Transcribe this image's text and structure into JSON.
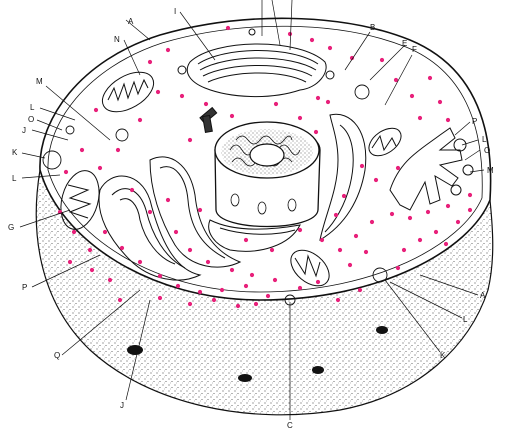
{
  "diagram": {
    "colors": {
      "ink": "#111111",
      "dot": "#e8207a",
      "paper": "#ffffff"
    },
    "labels": {
      "A_top": "A",
      "N": "N",
      "I": "I",
      "B": "B",
      "E": "E",
      "F": "F",
      "M_left": "M",
      "L_left1": "L",
      "O_left": "O",
      "J_left": "J",
      "K_left": "K",
      "L_left2": "L",
      "G": "G",
      "P_left": "P",
      "Q": "Q",
      "J_bottom": "J",
      "C": "C",
      "P_right": "P",
      "L_right": "L",
      "O_right": "O",
      "M_right": "M",
      "A_right": "A",
      "L_lowright": "L",
      "K_lowright": "K"
    }
  }
}
